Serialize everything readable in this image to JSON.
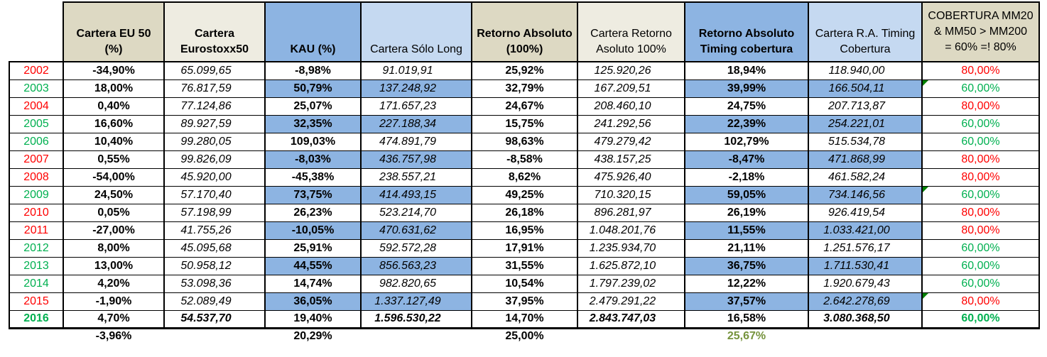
{
  "colors": {
    "header_tan_dark": "#DDD9C3",
    "header_tan_light": "#EEECE1",
    "header_blue": "#8DB4E2",
    "header_blue_light": "#C5D9F1",
    "stripe_tan": "#DDD9C3",
    "stripe_blue": "#8DB4E2",
    "negative_red": "#FF0000",
    "positive_green": "#00B050",
    "summary_olive": "#76933C",
    "marker_green": "#008000"
  },
  "table": {
    "columns": [
      {
        "key": "year",
        "label_lines": [],
        "header_style": "none",
        "header_bold": false
      },
      {
        "key": "eu50",
        "label_lines": [
          "Cartera EU 50",
          "(%)"
        ],
        "header_style": "tan-dark",
        "header_bold": true
      },
      {
        "key": "eurostoxx",
        "label_lines": [
          "Cartera",
          "Eurostoxx50"
        ],
        "header_style": "tan-light",
        "header_bold": true
      },
      {
        "key": "kau",
        "label_lines": [
          "KAU (%)"
        ],
        "header_style": "blue",
        "header_bold": true
      },
      {
        "key": "solo_long",
        "label_lines": [
          "Cartera Sólo Long"
        ],
        "header_style": "blue-light",
        "header_bold": false
      },
      {
        "key": "ra",
        "label_lines": [
          "Retorno Absoluto",
          "(100%)"
        ],
        "header_style": "tan-dark",
        "header_bold": true
      },
      {
        "key": "cartera_ra",
        "label_lines": [
          "Cartera Retorno",
          "Asoluto 100%"
        ],
        "header_style": "tan-light",
        "header_bold": false
      },
      {
        "key": "ra_timing",
        "label_lines": [
          "Retorno Absoluto",
          "Timing cobertura"
        ],
        "header_style": "blue",
        "header_bold": true
      },
      {
        "key": "cartera_ra_timing",
        "label_lines": [
          "Cartera R.A. Timing",
          "Cobertura"
        ],
        "header_style": "blue-light",
        "header_bold": false
      },
      {
        "key": "cobertura",
        "label_lines": [
          "COBERTURA MM20",
          "& MM50 > MM200",
          "= 60% =! 80%"
        ],
        "header_style": "tan-dark",
        "header_bold": false,
        "header_middle": true
      }
    ],
    "rows": [
      {
        "year": "2002",
        "year_color": "red",
        "eu50": "-34,90%",
        "eurostoxx": "65.099,65",
        "kau": "-8,98%",
        "solo_long": "91.019,91",
        "ra": "25,92%",
        "cartera_ra": "125.920,26",
        "ra_timing": "18,94%",
        "cartera_ra_timing": "118.940,00",
        "cobertura": "80,00%",
        "cobertura_color": "red",
        "marker": false
      },
      {
        "year": "2003",
        "year_color": "green",
        "eu50": "18,00%",
        "eurostoxx": "76.817,59",
        "kau": "50,79%",
        "solo_long": "137.248,92",
        "ra": "32,79%",
        "cartera_ra": "167.209,51",
        "ra_timing": "39,99%",
        "cartera_ra_timing": "166.504,11",
        "cobertura": "60,00%",
        "cobertura_color": "green",
        "marker": true
      },
      {
        "year": "2004",
        "year_color": "red",
        "eu50": "0,40%",
        "eurostoxx": "77.124,86",
        "kau": "25,07%",
        "solo_long": "171.657,23",
        "ra": "24,67%",
        "cartera_ra": "208.460,10",
        "ra_timing": "24,75%",
        "cartera_ra_timing": "207.713,87",
        "cobertura": "80,00%",
        "cobertura_color": "red",
        "marker": false
      },
      {
        "year": "2005",
        "year_color": "green",
        "eu50": "16,60%",
        "eurostoxx": "89.927,59",
        "kau": "32,35%",
        "solo_long": "227.188,34",
        "ra": "15,75%",
        "cartera_ra": "241.292,56",
        "ra_timing": "22,39%",
        "cartera_ra_timing": "254.221,01",
        "cobertura": "60,00%",
        "cobertura_color": "green",
        "marker": false
      },
      {
        "year": "2006",
        "year_color": "green",
        "eu50": "10,40%",
        "eurostoxx": "99.280,05",
        "kau": "109,03%",
        "solo_long": "474.891,79",
        "ra": "98,63%",
        "cartera_ra": "479.279,42",
        "ra_timing": "102,79%",
        "cartera_ra_timing": "515.534,78",
        "cobertura": "60,00%",
        "cobertura_color": "green",
        "marker": false
      },
      {
        "year": "2007",
        "year_color": "red",
        "eu50": "0,55%",
        "eurostoxx": "99.826,09",
        "kau": "-8,03%",
        "solo_long": "436.757,98",
        "ra": "-8,58%",
        "cartera_ra": "438.157,25",
        "ra_timing": "-8,47%",
        "cartera_ra_timing": "471.868,99",
        "cobertura": "80,00%",
        "cobertura_color": "red",
        "marker": false
      },
      {
        "year": "2008",
        "year_color": "red",
        "eu50": "-54,00%",
        "eurostoxx": "45.920,00",
        "kau": "-45,38%",
        "solo_long": "238.557,21",
        "ra": "8,62%",
        "cartera_ra": "475.926,40",
        "ra_timing": "-2,18%",
        "cartera_ra_timing": "461.582,24",
        "cobertura": "80,00%",
        "cobertura_color": "red",
        "marker": false
      },
      {
        "year": "2009",
        "year_color": "green",
        "eu50": "24,50%",
        "eurostoxx": "57.170,40",
        "kau": "73,75%",
        "solo_long": "414.493,15",
        "ra": "49,25%",
        "cartera_ra": "710.320,15",
        "ra_timing": "59,05%",
        "cartera_ra_timing": "734.146,56",
        "cobertura": "60,00%",
        "cobertura_color": "green",
        "marker": true
      },
      {
        "year": "2010",
        "year_color": "red",
        "eu50": "0,05%",
        "eurostoxx": "57.198,99",
        "kau": "26,23%",
        "solo_long": "523.214,70",
        "ra": "26,18%",
        "cartera_ra": "896.281,97",
        "ra_timing": "26,19%",
        "cartera_ra_timing": "926.419,54",
        "cobertura": "80,00%",
        "cobertura_color": "red",
        "marker": false
      },
      {
        "year": "2011",
        "year_color": "red",
        "eu50": "-27,00%",
        "eurostoxx": "41.755,26",
        "kau": "-10,05%",
        "solo_long": "470.631,62",
        "ra": "16,95%",
        "cartera_ra": "1.048.201,76",
        "ra_timing": "11,55%",
        "cartera_ra_timing": "1.033.421,00",
        "cobertura": "80,00%",
        "cobertura_color": "red",
        "marker": false
      },
      {
        "year": "2012",
        "year_color": "green",
        "eu50": "8,00%",
        "eurostoxx": "45.095,68",
        "kau": "25,91%",
        "solo_long": "592.572,28",
        "ra": "17,91%",
        "cartera_ra": "1.235.934,70",
        "ra_timing": "21,11%",
        "cartera_ra_timing": "1.251.576,17",
        "cobertura": "60,00%",
        "cobertura_color": "green",
        "marker": false
      },
      {
        "year": "2013",
        "year_color": "green",
        "eu50": "13,00%",
        "eurostoxx": "50.958,12",
        "kau": "44,55%",
        "solo_long": "856.563,23",
        "ra": "31,55%",
        "cartera_ra": "1.625.872,10",
        "ra_timing": "36,75%",
        "cartera_ra_timing": "1.711.530,41",
        "cobertura": "60,00%",
        "cobertura_color": "green",
        "marker": false
      },
      {
        "year": "2014",
        "year_color": "green",
        "eu50": "4,20%",
        "eurostoxx": "53.098,36",
        "kau": "14,74%",
        "solo_long": "982.820,65",
        "ra": "10,54%",
        "cartera_ra": "1.797.239,02",
        "ra_timing": "12,22%",
        "cartera_ra_timing": "1.920.679,43",
        "cobertura": "60,00%",
        "cobertura_color": "green",
        "marker": false
      },
      {
        "year": "2015",
        "year_color": "red",
        "eu50": "-1,90%",
        "eurostoxx": "52.089,49",
        "kau": "36,05%",
        "solo_long": "1.337.127,49",
        "ra": "37,95%",
        "cartera_ra": "2.479.291,22",
        "ra_timing": "37,57%",
        "cartera_ra_timing": "2.642.278,69",
        "cobertura": "80,00%",
        "cobertura_color": "red",
        "marker": true
      },
      {
        "year": "2016",
        "year_color": "green",
        "eu50": "4,70%",
        "eurostoxx": "54.537,70",
        "kau": "19,40%",
        "solo_long": "1.596.530,22",
        "ra": "14,70%",
        "cartera_ra": "2.843.747,03",
        "ra_timing": "16,58%",
        "cartera_ra_timing": "3.080.368,50",
        "cobertura": "60,00%",
        "cobertura_color": "green",
        "marker": false
      }
    ],
    "summary": {
      "eu50": "-3,96%",
      "kau": "20,29%",
      "ra": "25,00%",
      "ra_timing": "25,67%"
    }
  }
}
